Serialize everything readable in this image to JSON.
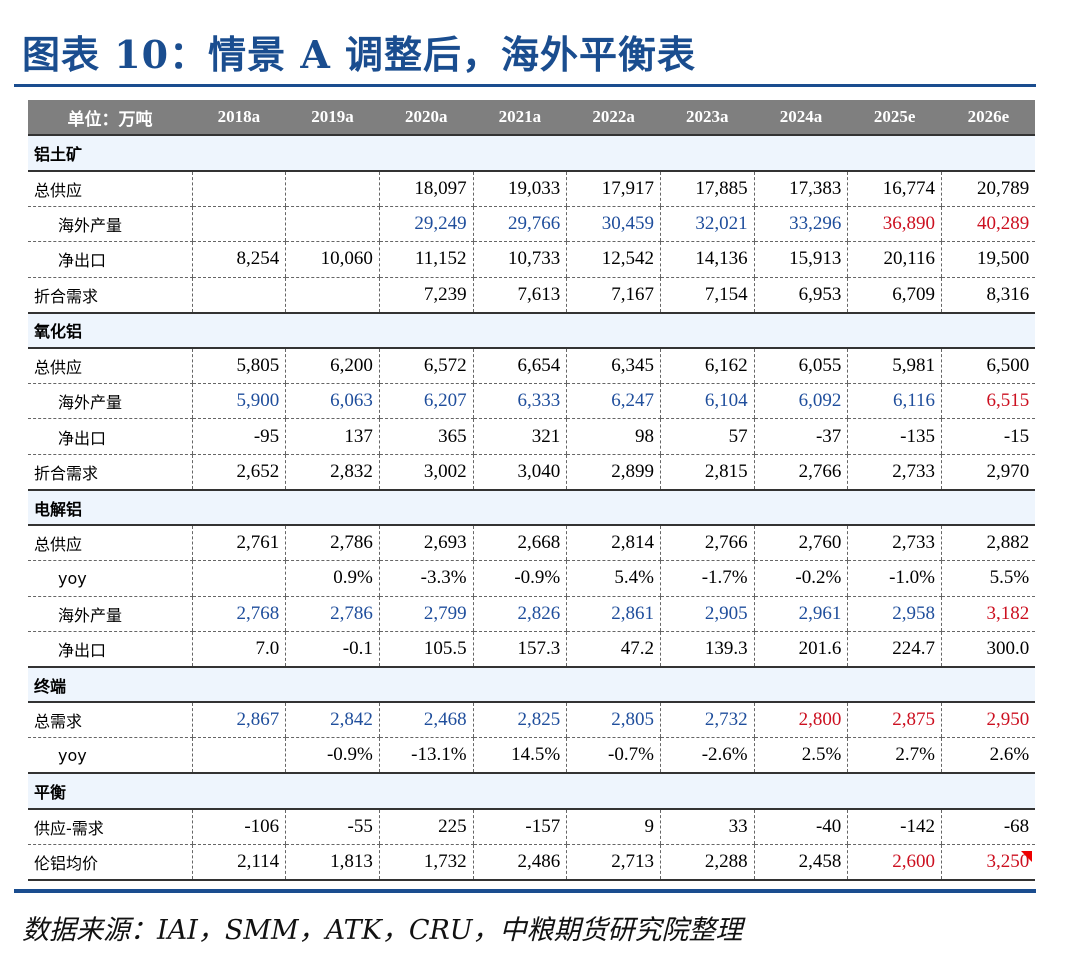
{
  "title": "图表 10：情景 A 调整后，海外平衡表",
  "source": "数据来源：IAI，SMM，ATK，CRU，中粮期货研究院整理",
  "colors": {
    "title": "#1a4d8f",
    "overseas_blue": "#1f4e9c",
    "forecast_red": "#cc1020",
    "header_bg": "#7f7f7f",
    "section_bg": "#eef5fd"
  },
  "header": [
    "单位：万吨",
    "2018a",
    "2019a",
    "2020a",
    "2021a",
    "2022a",
    "2023a",
    "2024a",
    "2025e",
    "2026e"
  ],
  "sections": [
    {
      "name": "铝土矿",
      "rows": [
        {
          "label": "总供应",
          "indent": false,
          "values": [
            "",
            "",
            "18,097",
            "19,033",
            "17,917",
            "17,885",
            "17,383",
            "16,774",
            "20,789"
          ],
          "colors": [
            "",
            "",
            "",
            "",
            "",
            "",
            "",
            "",
            ""
          ]
        },
        {
          "label": "海外产量",
          "indent": true,
          "values": [
            "",
            "",
            "29,249",
            "29,766",
            "30,459",
            "32,021",
            "33,296",
            "36,890",
            "40,289"
          ],
          "colors": [
            "",
            "",
            "b",
            "b",
            "b",
            "b",
            "b",
            "r",
            "r"
          ]
        },
        {
          "label": "净出口",
          "indent": true,
          "values": [
            "8,254",
            "10,060",
            "11,152",
            "10,733",
            "12,542",
            "14,136",
            "15,913",
            "20,116",
            "19,500"
          ],
          "colors": [
            "",
            "",
            "",
            "",
            "",
            "",
            "",
            "",
            ""
          ]
        },
        {
          "label": "折合需求",
          "indent": false,
          "values": [
            "",
            "",
            "7,239",
            "7,613",
            "7,167",
            "7,154",
            "6,953",
            "6,709",
            "8,316"
          ],
          "colors": [
            "",
            "",
            "",
            "",
            "",
            "",
            "",
            "",
            ""
          ]
        }
      ]
    },
    {
      "name": "氧化铝",
      "rows": [
        {
          "label": "总供应",
          "indent": false,
          "values": [
            "5,805",
            "6,200",
            "6,572",
            "6,654",
            "6,345",
            "6,162",
            "6,055",
            "5,981",
            "6,500"
          ],
          "colors": [
            "",
            "",
            "",
            "",
            "",
            "",
            "",
            "",
            ""
          ]
        },
        {
          "label": "海外产量",
          "indent": true,
          "values": [
            "5,900",
            "6,063",
            "6,207",
            "6,333",
            "6,247",
            "6,104",
            "6,092",
            "6,116",
            "6,515"
          ],
          "colors": [
            "b",
            "b",
            "b",
            "b",
            "b",
            "b",
            "b",
            "b",
            "r"
          ]
        },
        {
          "label": "净出口",
          "indent": true,
          "values": [
            "-95",
            "137",
            "365",
            "321",
            "98",
            "57",
            "-37",
            "-135",
            "-15"
          ],
          "colors": [
            "",
            "",
            "",
            "",
            "",
            "",
            "",
            "",
            ""
          ]
        },
        {
          "label": "折合需求",
          "indent": false,
          "values": [
            "2,652",
            "2,832",
            "3,002",
            "3,040",
            "2,899",
            "2,815",
            "2,766",
            "2,733",
            "2,970"
          ],
          "colors": [
            "",
            "",
            "",
            "",
            "",
            "",
            "",
            "",
            ""
          ]
        }
      ]
    },
    {
      "name": "电解铝",
      "rows": [
        {
          "label": "总供应",
          "indent": false,
          "values": [
            "2,761",
            "2,786",
            "2,693",
            "2,668",
            "2,814",
            "2,766",
            "2,760",
            "2,733",
            "2,882"
          ],
          "colors": [
            "",
            "",
            "",
            "",
            "",
            "",
            "",
            "",
            ""
          ]
        },
        {
          "label": "yoy",
          "indent": true,
          "values": [
            "",
            "0.9%",
            "-3.3%",
            "-0.9%",
            "5.4%",
            "-1.7%",
            "-0.2%",
            "-1.0%",
            "5.5%"
          ],
          "colors": [
            "",
            "",
            "",
            "",
            "",
            "",
            "",
            "",
            ""
          ]
        },
        {
          "label": "海外产量",
          "indent": true,
          "values": [
            "2,768",
            "2,786",
            "2,799",
            "2,826",
            "2,861",
            "2,905",
            "2,961",
            "2,958",
            "3,182"
          ],
          "colors": [
            "b",
            "b",
            "b",
            "b",
            "b",
            "b",
            "b",
            "b",
            "r"
          ]
        },
        {
          "label": "净出口",
          "indent": true,
          "values": [
            "7.0",
            "-0.1",
            "105.5",
            "157.3",
            "47.2",
            "139.3",
            "201.6",
            "224.7",
            "300.0"
          ],
          "colors": [
            "",
            "",
            "",
            "",
            "",
            "",
            "",
            "",
            ""
          ]
        }
      ]
    },
    {
      "name": "终端",
      "rows": [
        {
          "label": "总需求",
          "indent": false,
          "values": [
            "2,867",
            "2,842",
            "2,468",
            "2,825",
            "2,805",
            "2,732",
            "2,800",
            "2,875",
            "2,950"
          ],
          "colors": [
            "b",
            "b",
            "b",
            "b",
            "b",
            "b",
            "r",
            "r",
            "r"
          ]
        },
        {
          "label": "yoy",
          "indent": true,
          "values": [
            "",
            "-0.9%",
            "-13.1%",
            "14.5%",
            "-0.7%",
            "-2.6%",
            "2.5%",
            "2.7%",
            "2.6%"
          ],
          "colors": [
            "",
            "",
            "",
            "",
            "",
            "",
            "",
            "",
            ""
          ]
        }
      ]
    },
    {
      "name": "平衡",
      "rows": [
        {
          "label": "供应-需求",
          "indent": false,
          "values": [
            "-106",
            "-55",
            "225",
            "-157",
            "9",
            "33",
            "-40",
            "-142",
            "-68"
          ],
          "colors": [
            "",
            "",
            "",
            "",
            "",
            "",
            "",
            "",
            ""
          ]
        },
        {
          "label": "伦铝均价",
          "indent": false,
          "values": [
            "2,114",
            "1,813",
            "1,732",
            "2,486",
            "2,713",
            "2,288",
            "2,458",
            "2,600",
            "3,250"
          ],
          "colors": [
            "",
            "",
            "",
            "",
            "",
            "",
            "",
            "r",
            "r"
          ]
        }
      ]
    }
  ]
}
